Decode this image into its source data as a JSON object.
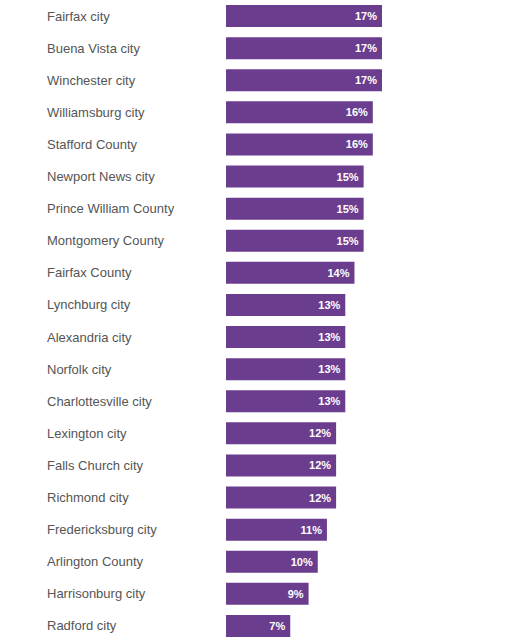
{
  "chart_data": {
    "type": "bar",
    "orientation": "horizontal",
    "categories": [
      "Fairfax city",
      "Buena Vista city",
      "Winchester city",
      "Williamsburg city",
      "Stafford County",
      "Newport News city",
      "Prince William County",
      "Montgomery County",
      "Fairfax County",
      "Lynchburg city",
      "Alexandria city",
      "Norfolk city",
      "Charlottesville city",
      "Lexington city",
      "Falls Church city",
      "Richmond city",
      "Fredericksburg city",
      "Arlington County",
      "Harrisonburg city",
      "Radford city"
    ],
    "values": [
      17,
      17,
      17,
      16,
      16,
      15,
      15,
      15,
      14,
      13,
      13,
      13,
      13,
      12,
      12,
      12,
      11,
      10,
      9,
      7
    ],
    "value_labels": [
      "17%",
      "17%",
      "17%",
      "16%",
      "16%",
      "15%",
      "15%",
      "15%",
      "14%",
      "13%",
      "13%",
      "13%",
      "13%",
      "12%",
      "12%",
      "12%",
      "11%",
      "10%",
      "9%",
      "7%"
    ],
    "color": "#6a3d8e",
    "data_labels": true,
    "tick_labels": "y",
    "grid": false
  }
}
